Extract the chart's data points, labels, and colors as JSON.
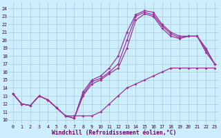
{
  "xlabel": "Windchill (Refroidissement éolien,°C)",
  "bg_color": "#cceeff",
  "line_color": "#993399",
  "grid_color": "#aacccc",
  "xticks": [
    0,
    1,
    2,
    3,
    4,
    5,
    6,
    7,
    8,
    9,
    10,
    11,
    12,
    13,
    14,
    15,
    16,
    17,
    18,
    19,
    20,
    21,
    22,
    23
  ],
  "yticks": [
    10,
    11,
    12,
    13,
    14,
    15,
    16,
    17,
    18,
    19,
    20,
    21,
    22,
    23,
    24
  ],
  "line_flat": [
    13.3,
    12.0,
    11.8,
    13.0,
    12.5,
    11.5,
    10.5,
    10.5,
    10.5,
    10.5,
    11.0,
    12.0,
    13.0,
    14.0,
    14.5,
    15.0,
    15.5,
    16.0,
    16.5,
    16.5,
    16.5,
    16.5,
    16.5,
    16.5
  ],
  "line_high": [
    13.3,
    12.0,
    11.8,
    13.0,
    12.5,
    11.5,
    10.5,
    10.2,
    13.5,
    15.0,
    15.5,
    16.5,
    18.0,
    21.0,
    23.2,
    23.7,
    23.5,
    22.0,
    21.0,
    20.5,
    20.5,
    20.5,
    19.0,
    17.0
  ],
  "line_mid1": [
    13.3,
    12.0,
    11.8,
    13.0,
    12.5,
    11.5,
    10.5,
    10.2,
    13.0,
    14.5,
    15.0,
    15.8,
    16.5,
    19.0,
    22.5,
    23.3,
    23.0,
    21.5,
    20.5,
    20.2,
    20.5,
    20.5,
    18.5,
    17.0
  ],
  "line_mid2": [
    13.3,
    12.0,
    11.8,
    13.0,
    12.5,
    11.5,
    10.5,
    10.2,
    13.2,
    14.8,
    15.2,
    16.0,
    17.0,
    20.0,
    23.0,
    23.5,
    23.2,
    21.8,
    20.8,
    20.3,
    20.5,
    20.5,
    18.8,
    17.0
  ]
}
